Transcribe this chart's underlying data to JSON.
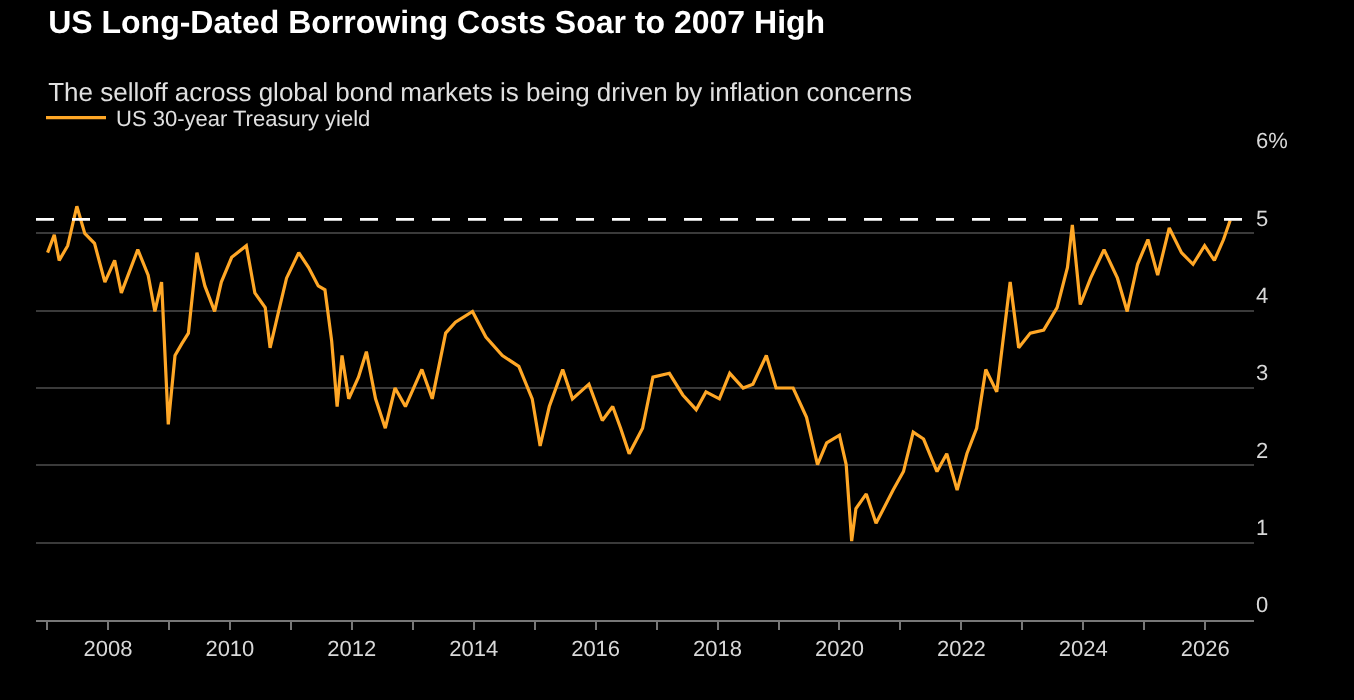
{
  "chart_data": {
    "type": "line",
    "title": "US Long-Dated Borrowing Costs Soar to 2007 High",
    "subtitle": "The selloff across global bond markets is being driven by inflation concerns",
    "series": [
      {
        "name": "US 30-year Treasury yield",
        "color": "#ffa726",
        "x": [
          2007.01,
          2007.12,
          2007.2,
          2007.34,
          2007.49,
          2007.62,
          2007.78,
          2007.95,
          2008.11,
          2008.22,
          2008.49,
          2008.66,
          2008.77,
          2008.88,
          2008.99,
          2009.1,
          2009.21,
          2009.32,
          2009.46,
          2009.59,
          2009.75,
          2009.86,
          2010.03,
          2010.27,
          2010.41,
          2010.58,
          2010.66,
          2010.8,
          2010.93,
          2011.13,
          2011.29,
          2011.45,
          2011.56,
          2011.67,
          2011.76,
          2011.84,
          2011.95,
          2012.11,
          2012.24,
          2012.39,
          2012.55,
          2012.71,
          2012.88,
          2013.15,
          2013.32,
          2013.54,
          2013.7,
          2013.98,
          2014.2,
          2014.47,
          2014.74,
          2014.96,
          2015.09,
          2015.24,
          2015.46,
          2015.62,
          2015.89,
          2016.11,
          2016.28,
          2016.41,
          2016.55,
          2016.77,
          2016.94,
          2017.21,
          2017.43,
          2017.65,
          2017.81,
          2018.03,
          2018.2,
          2018.42,
          2018.58,
          2018.8,
          2018.96,
          2019.24,
          2019.46,
          2019.64,
          2019.79,
          2020.0,
          2020.11,
          2020.2,
          2020.27,
          2020.44,
          2020.6,
          2020.88,
          2021.05,
          2021.21,
          2021.38,
          2021.6,
          2021.76,
          2021.93,
          2022.09,
          2022.25,
          2022.4,
          2022.58,
          2022.8,
          2022.94,
          2023.13,
          2023.35,
          2023.57,
          2023.74,
          2023.82,
          2023.95,
          2024.12,
          2024.34,
          2024.56,
          2024.72,
          2024.89,
          2025.06,
          2025.22,
          2025.41,
          2025.61,
          2025.8,
          2025.99,
          2026.15,
          2026.3,
          2026.41
        ],
        "values": [
          4.75,
          4.98,
          4.65,
          4.84,
          5.35,
          5.0,
          4.87,
          4.37,
          4.65,
          4.23,
          4.79,
          4.46,
          3.99,
          4.37,
          2.53,
          3.42,
          3.57,
          3.71,
          4.75,
          4.32,
          3.99,
          4.37,
          4.69,
          4.84,
          4.23,
          4.04,
          3.52,
          3.99,
          4.42,
          4.75,
          4.56,
          4.32,
          4.27,
          3.61,
          2.76,
          3.42,
          2.86,
          3.14,
          3.47,
          2.86,
          2.48,
          3.0,
          2.76,
          3.24,
          2.86,
          3.71,
          3.85,
          3.99,
          3.66,
          3.42,
          3.28,
          2.86,
          2.25,
          2.76,
          3.24,
          2.86,
          3.05,
          2.58,
          2.76,
          2.48,
          2.15,
          2.48,
          3.14,
          3.19,
          2.91,
          2.72,
          2.95,
          2.86,
          3.19,
          3.0,
          3.05,
          3.42,
          3.0,
          3.0,
          2.62,
          2.01,
          2.29,
          2.39,
          2.01,
          1.02,
          1.44,
          1.63,
          1.25,
          1.68,
          1.92,
          2.43,
          2.34,
          1.92,
          2.15,
          1.68,
          2.15,
          2.48,
          3.24,
          2.95,
          4.37,
          3.52,
          3.71,
          3.75,
          4.04,
          4.56,
          5.11,
          4.08,
          4.42,
          4.79,
          4.42,
          3.99,
          4.6,
          4.92,
          4.46,
          5.07,
          4.75,
          4.6,
          4.84,
          4.65,
          4.92,
          5.17
        ]
      }
    ],
    "xlim": [
      2006.82,
      2026.8
    ],
    "xticks": [
      {
        "value": 2007,
        "label": null
      },
      2008,
      {
        "value": 2009,
        "label": null
      },
      2010,
      {
        "value": 2011,
        "label": null
      },
      2012,
      {
        "value": 2013,
        "label": null
      },
      2014,
      {
        "value": 2015,
        "label": null
      },
      2016,
      {
        "value": 2017,
        "label": null
      },
      2018,
      {
        "value": 2019,
        "label": null
      },
      2020,
      {
        "value": 2021,
        "label": null
      },
      2022,
      {
        "value": 2023,
        "label": null
      },
      2024,
      {
        "value": 2025,
        "label": null
      },
      2026
    ],
    "ylim": [
      0,
      6
    ],
    "yticks": [
      0,
      1,
      2,
      3,
      4,
      5,
      {
        "value": 6,
        "label": "6%"
      }
    ],
    "ref_lines": [
      {
        "axis": "y",
        "value": 5.18,
        "color": "#ffffff",
        "line_style": "dashed"
      }
    ],
    "grid": "y",
    "legend": "top left",
    "line_style": "solid",
    "marker": "none"
  }
}
